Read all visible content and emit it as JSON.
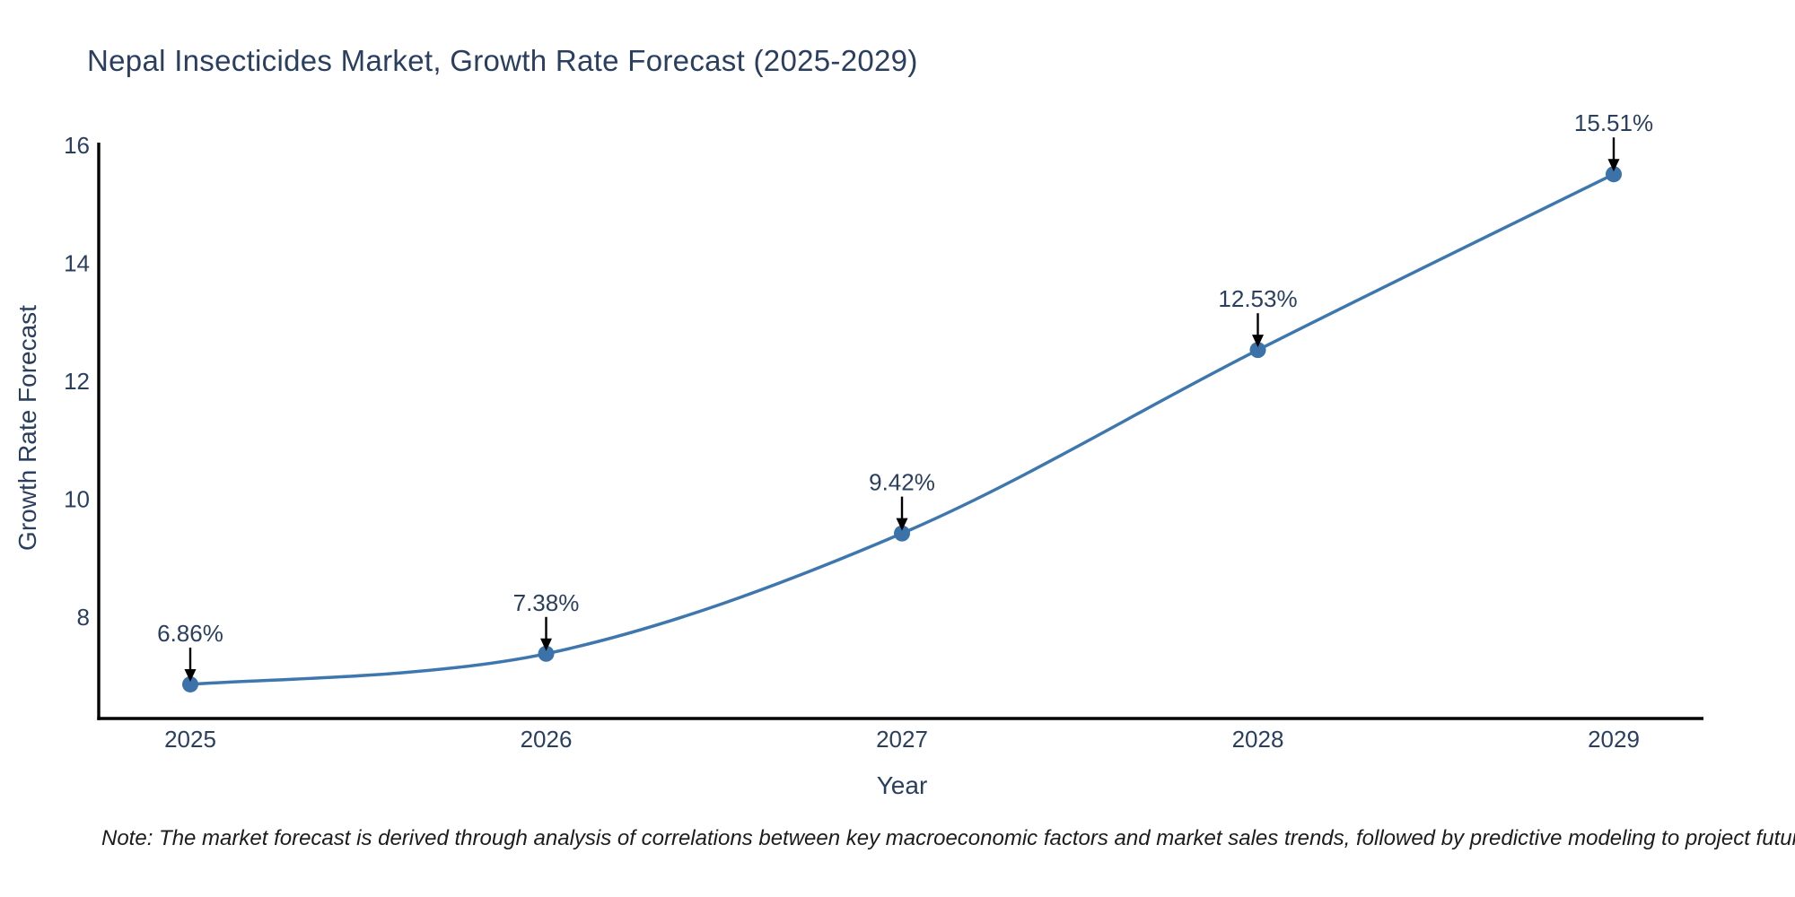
{
  "title": "Nepal Insecticides Market, Growth Rate Forecast (2025-2029)",
  "note": "Note: The market forecast is derived through analysis of correlations between key macroeconomic factors and market sales trends, followed by predictive modeling to project future sales",
  "chart_data": {
    "type": "line",
    "title": "Nepal Insecticides Market, Growth Rate Forecast (2025-2029)",
    "x": [
      2025,
      2026,
      2027,
      2028,
      2029
    ],
    "xticks": [
      "2025",
      "2026",
      "2027",
      "2028",
      "2029"
    ],
    "series": [
      {
        "name": "Growth Rate Forecast",
        "values": [
          6.86,
          7.38,
          9.42,
          12.53,
          15.51
        ]
      }
    ],
    "point_labels": [
      "6.86%",
      "7.38%",
      "9.42%",
      "12.53%",
      "15.51%"
    ],
    "xlabel": "Year",
    "ylabel": "Growth Rate Forecast",
    "yticks": [
      8,
      10,
      12,
      14,
      16
    ],
    "ylim": [
      6.28,
      16
    ],
    "line_shape": "spline",
    "grid": false,
    "legend": "none",
    "colors": {
      "line": "#3e77ae",
      "marker": "#3a72a9",
      "axis": "#000000",
      "text": "#2a3f5f",
      "annotation_text": "#2a3f5f",
      "arrow": "#000000",
      "background": "#ffffff"
    }
  }
}
